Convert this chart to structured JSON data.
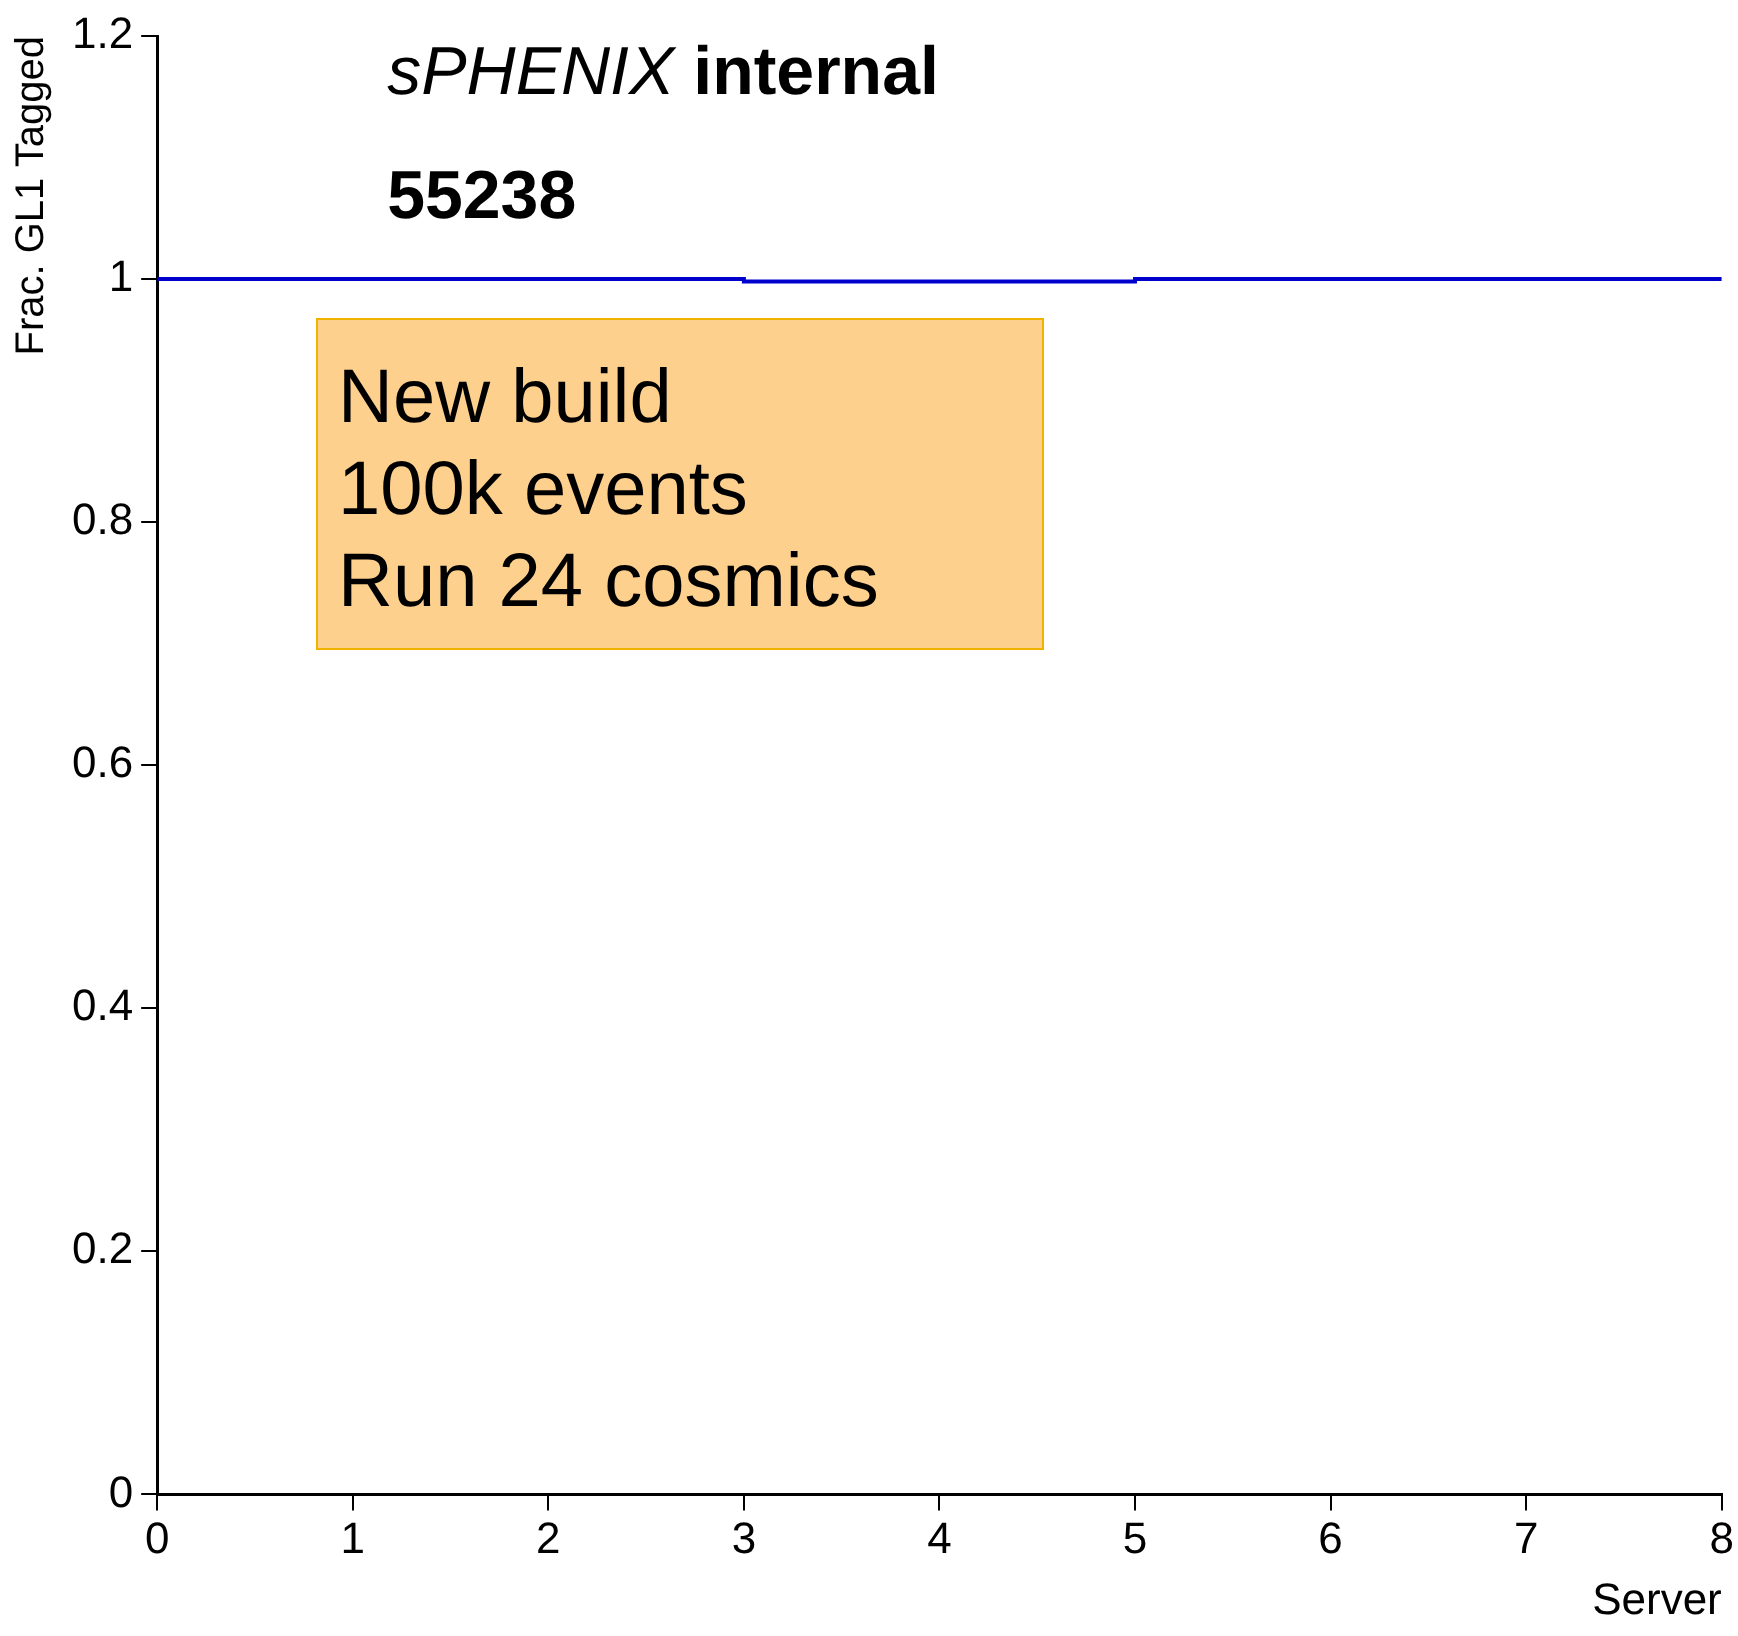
{
  "chart_data": {
    "type": "step",
    "title": "sPHENIX internal",
    "subtitle": "55238",
    "xlabel": "Server",
    "ylabel": "Frac. GL1 Tagged",
    "x": [
      0,
      1,
      2,
      3,
      4,
      5,
      6,
      7,
      8
    ],
    "values": [
      1,
      1,
      1,
      0.998,
      0.998,
      1,
      1,
      1,
      1
    ],
    "color": "#0000cc",
    "xlim": [
      0,
      8
    ],
    "xticks": [
      0,
      1,
      2,
      3,
      4,
      5,
      6,
      7,
      8
    ],
    "ylim": [
      0,
      1.2
    ],
    "yticks": [
      0,
      0.2,
      0.4,
      0.6,
      0.8,
      1,
      1.2
    ],
    "grid": false,
    "legend": false,
    "annotations": [
      "New build\n100k events\nRun 24 cosmics"
    ]
  }
}
